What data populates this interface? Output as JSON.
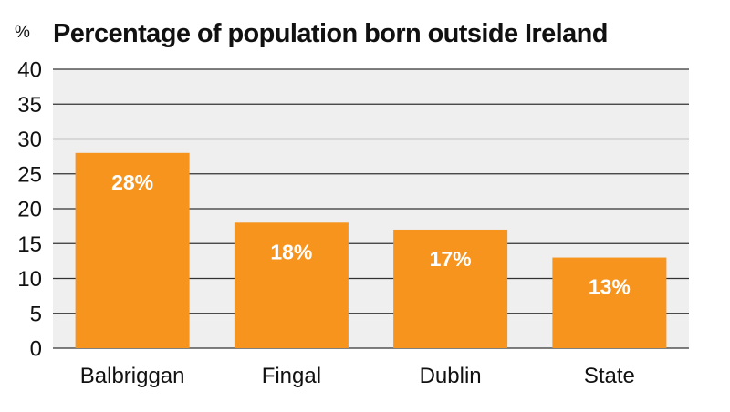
{
  "chart_data": {
    "type": "bar",
    "title": "Percentage of population born outside Ireland",
    "ylabel": "%",
    "xlabel": "",
    "categories": [
      "Balbriggan",
      "Fingal",
      "Dublin",
      "State"
    ],
    "values": [
      28,
      18,
      17,
      13
    ],
    "value_labels": [
      "28%",
      "18%",
      "17%",
      "13%"
    ],
    "ylim": [
      0,
      40
    ],
    "yticks": [
      0,
      5,
      10,
      15,
      20,
      25,
      30,
      35,
      40
    ],
    "grid": true,
    "colors": {
      "bar": "#F7941D",
      "plot_background": "#EFEFEF",
      "gridline": "#333333",
      "value_label": "#FFFFFF"
    }
  }
}
